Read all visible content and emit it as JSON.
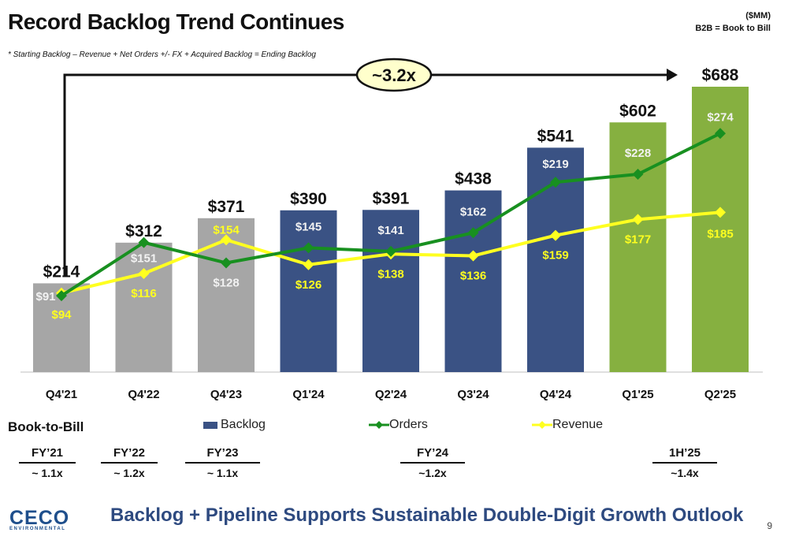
{
  "slide": {
    "title": "Record Backlog Trend Continues",
    "units": "($MM)",
    "b2b_note": "B2B = Book to Bill",
    "footnote": "* Starting Backlog – Revenue + Net Orders +/- FX + Acquired Backlog = Ending Backlog",
    "growth_callout": "~3.2x",
    "footer_banner": "Backlog + Pipeline Supports Sustainable Double-Digit Growth Outlook",
    "logo_text": "CECO",
    "logo_subtext": "ENVIRONMENTAL",
    "page_number": "9"
  },
  "book_to_bill": {
    "title": "Book-to-Bill",
    "items": [
      {
        "period": "FY’21",
        "ratio": "~ 1.1x"
      },
      {
        "period": "FY’22",
        "ratio": "~ 1.2x"
      },
      {
        "period": "FY’23",
        "ratio": "~ 1.1x"
      },
      {
        "period": "FY’24",
        "ratio": "~1.2x"
      },
      {
        "period": "1H’25",
        "ratio": "~1.4x"
      }
    ]
  },
  "chart_data": {
    "type": "bar",
    "categories": [
      "Q4'21",
      "Q4'22",
      "Q4'23",
      "Q1'24",
      "Q2'24",
      "Q3'24",
      "Q4'24",
      "Q1'25",
      "Q2'25"
    ],
    "series": [
      {
        "name": "Backlog",
        "type": "bar",
        "values": [
          214,
          312,
          371,
          390,
          391,
          438,
          541,
          602,
          688
        ],
        "labels": [
          "$214",
          "$312",
          "$371",
          "$390",
          "$391",
          "$438",
          "$541",
          "$602",
          "$688"
        ]
      },
      {
        "name": "Orders",
        "type": "line",
        "values": [
          91,
          151,
          128,
          145,
          141,
          162,
          219,
          228,
          274
        ],
        "labels": [
          "$91",
          "$151",
          "$128",
          "$145",
          "$141",
          "$162",
          "$219",
          "$228",
          "$274"
        ]
      },
      {
        "name": "Revenue",
        "type": "line",
        "values": [
          94,
          116,
          154,
          126,
          138,
          136,
          159,
          177,
          185
        ],
        "labels": [
          "$94",
          "$116",
          "$154",
          "$126",
          "$138",
          "$136",
          "$159",
          "$177",
          "$185"
        ]
      }
    ],
    "bar_colors": [
      "#a6a6a6",
      "#a6a6a6",
      "#a6a6a6",
      "#3a5284",
      "#3a5284",
      "#3a5284",
      "#3a5284",
      "#86b040",
      "#86b040"
    ],
    "line_colors": {
      "Orders": "#189020",
      "Revenue": "#ffff20"
    },
    "bar_ylim": [
      0,
      688
    ],
    "line_ylim": [
      60,
      300
    ],
    "legend_position": "bottom",
    "grid": false
  }
}
